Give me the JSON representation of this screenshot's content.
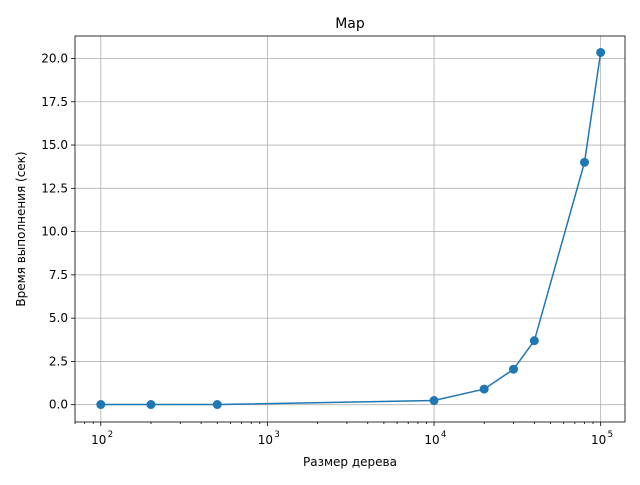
{
  "chart_data": {
    "type": "line",
    "title": "Map",
    "xlabel": "Размер дерева",
    "ylabel": "Время выполнения (сек)",
    "x_scale": "log",
    "xlim": [
      70,
      140000
    ],
    "ylim": [
      -1.0,
      21.3
    ],
    "x_ticks": [
      {
        "value": 100,
        "base": "10",
        "exp": "2"
      },
      {
        "value": 1000,
        "base": "10",
        "exp": "3"
      },
      {
        "value": 10000,
        "base": "10",
        "exp": "4"
      },
      {
        "value": 100000,
        "base": "10",
        "exp": "5"
      }
    ],
    "y_ticks": [
      {
        "value": 0.0,
        "label": "0.0"
      },
      {
        "value": 2.5,
        "label": "2.5"
      },
      {
        "value": 5.0,
        "label": "5.0"
      },
      {
        "value": 7.5,
        "label": "7.5"
      },
      {
        "value": 10.0,
        "label": "10.0"
      },
      {
        "value": 12.5,
        "label": "12.5"
      },
      {
        "value": 15.0,
        "label": "15.0"
      },
      {
        "value": 17.5,
        "label": "17.5"
      },
      {
        "value": 20.0,
        "label": "20.0"
      }
    ],
    "grid": true,
    "series": [
      {
        "color": "#1f77b4",
        "marker": "circle",
        "x": [
          100,
          200,
          500,
          10000,
          20000,
          30000,
          40000,
          80000,
          100000
        ],
        "y": [
          0.01,
          0.01,
          0.01,
          0.24,
          0.9,
          2.05,
          3.7,
          14.0,
          20.35
        ]
      }
    ]
  }
}
